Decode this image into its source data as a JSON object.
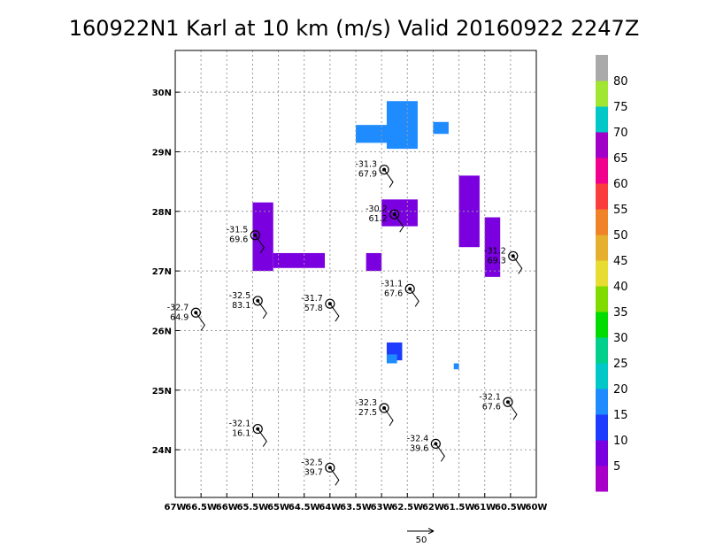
{
  "chart_data": {
    "type": "heatmap",
    "title": "160922N1 Karl at 10 km (m/s) Valid 20160922 2247Z",
    "x_ticks": [
      "67W",
      "66.5W",
      "66W",
      "65.5W",
      "65W",
      "64.5W",
      "64W",
      "63.5W",
      "63W",
      "62.5W",
      "62W",
      "61.5W",
      "61W",
      "60.5W",
      "60W"
    ],
    "y_ticks": [
      "30N",
      "29N",
      "28N",
      "27N",
      "26N",
      "25N",
      "24N"
    ],
    "xlim": [
      -67,
      -60
    ],
    "ylim": [
      23.2,
      30.7
    ],
    "grid": true,
    "colorbar": {
      "labels": [
        "5",
        "10",
        "15",
        "20",
        "25",
        "30",
        "35",
        "40",
        "45",
        "50",
        "55",
        "60",
        "65",
        "70",
        "75",
        "80"
      ],
      "colors": [
        "#a800c8",
        "#7a00e0",
        "#1e3cff",
        "#1e8cff",
        "#00c8c8",
        "#00d08c",
        "#00dc00",
        "#80dc00",
        "#e6dc32",
        "#e6af2d",
        "#f08228",
        "#fa3c3c",
        "#f0008c",
        "#a000c8",
        "#00c8c8",
        "#a0e632",
        "#aaaaaa"
      ]
    },
    "reference_vector": {
      "label": "50"
    },
    "stations": [
      {
        "temp": "-31.3",
        "value": "67.9",
        "lon": -62.95,
        "lat": 28.7
      },
      {
        "temp": "-30.2",
        "value": "61.2",
        "lon": -62.75,
        "lat": 27.95
      },
      {
        "temp": "-31.5",
        "value": "69.6",
        "lon": -65.45,
        "lat": 27.6
      },
      {
        "temp": "-31.2",
        "value": "69.3",
        "lon": -60.45,
        "lat": 27.25
      },
      {
        "temp": "-31.1",
        "value": "67.6",
        "lon": -62.45,
        "lat": 26.7
      },
      {
        "temp": "-32.5",
        "value": "83.1",
        "lon": -65.4,
        "lat": 26.5
      },
      {
        "temp": "-31.7",
        "value": "57.8",
        "lon": -64.0,
        "lat": 26.45
      },
      {
        "temp": "-32.7",
        "value": "64.9",
        "lon": -66.6,
        "lat": 26.3
      },
      {
        "temp": "-32.1",
        "value": "67.6",
        "lon": -60.55,
        "lat": 24.8
      },
      {
        "temp": "-32.3",
        "value": "27.5",
        "lon": -62.95,
        "lat": 24.7
      },
      {
        "temp": "-32.1",
        "value": "16.1",
        "lon": -65.4,
        "lat": 24.35
      },
      {
        "temp": "-32.4",
        "value": "39.6",
        "lon": -61.95,
        "lat": 24.1
      },
      {
        "temp": "-32.5",
        "value": "39.7",
        "lon": -64.0,
        "lat": 23.7
      }
    ],
    "wind_field": [
      {
        "lon_range": [
          -62.9,
          -62.3
        ],
        "lat_range": [
          29.85,
          29.05
        ],
        "speed": 15
      },
      {
        "lon_range": [
          -63.5,
          -62.5
        ],
        "lat_range": [
          29.45,
          29.15
        ],
        "speed": 15
      },
      {
        "lon_range": [
          -62.0,
          -61.7
        ],
        "lat_range": [
          29.5,
          29.3
        ],
        "speed": 15
      },
      {
        "lon_range": [
          -63.0,
          -62.3
        ],
        "lat_range": [
          28.2,
          27.75
        ],
        "speed": 5
      },
      {
        "lon_range": [
          -61.5,
          -61.1
        ],
        "lat_range": [
          28.6,
          27.4
        ],
        "speed": 5
      },
      {
        "lon_range": [
          -61.0,
          -60.7
        ],
        "lat_range": [
          27.9,
          26.9
        ],
        "speed": 5
      },
      {
        "lon_range": [
          -65.5,
          -65.1
        ],
        "lat_range": [
          28.15,
          27.0
        ],
        "speed": 5
      },
      {
        "lon_range": [
          -65.1,
          -64.1
        ],
        "lat_range": [
          27.3,
          27.05
        ],
        "speed": 5
      },
      {
        "lon_range": [
          -63.3,
          -63.0
        ],
        "lat_range": [
          27.3,
          27.0
        ],
        "speed": 5
      },
      {
        "lon_range": [
          -62.9,
          -62.6
        ],
        "lat_range": [
          25.8,
          25.5
        ],
        "speed": 10
      },
      {
        "lon_range": [
          -62.9,
          -62.7
        ],
        "lat_range": [
          25.6,
          25.45
        ],
        "speed": 15
      },
      {
        "lon_range": [
          -61.6,
          -61.5
        ],
        "lat_range": [
          25.45,
          25.35
        ],
        "speed": 15
      }
    ]
  }
}
